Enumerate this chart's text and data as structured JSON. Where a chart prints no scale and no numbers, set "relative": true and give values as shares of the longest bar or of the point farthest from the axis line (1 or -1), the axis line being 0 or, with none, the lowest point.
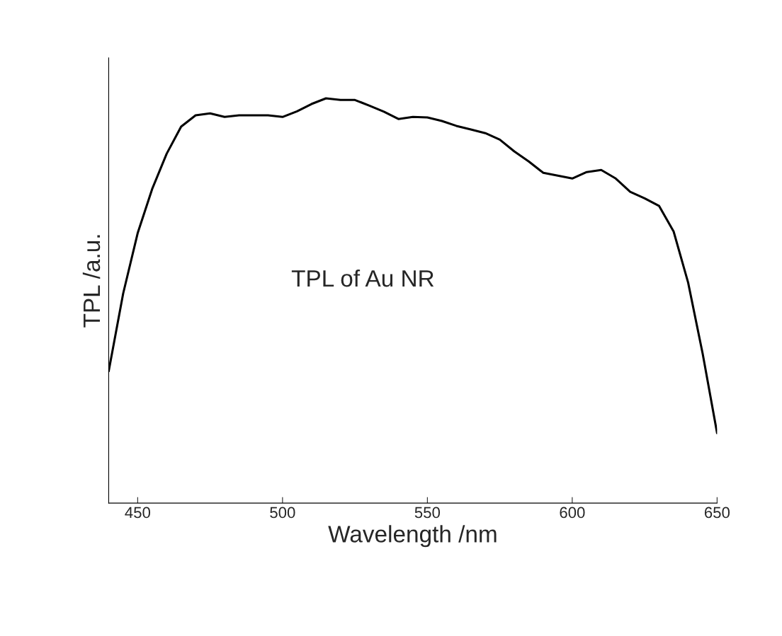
{
  "chart_data": {
    "type": "line",
    "xlabel": "Wavelength /nm",
    "ylabel": "TPL /a.u.",
    "relative": true,
    "annotations": [
      "TPL of Au NR"
    ],
    "xlim": [
      440,
      650
    ],
    "xticks": [
      450,
      500,
      550,
      600,
      650
    ],
    "grid": false,
    "legend": false,
    "series": [
      {
        "color": "#000000",
        "x": [
          440,
          445,
          450,
          455,
          460,
          465,
          470,
          475,
          480,
          485,
          490,
          495,
          500,
          505,
          510,
          515,
          520,
          525,
          530,
          535,
          540,
          545,
          550,
          555,
          560,
          565,
          570,
          575,
          580,
          585,
          590,
          595,
          600,
          605,
          610,
          615,
          620,
          625,
          630,
          635,
          640,
          645,
          650
        ],
        "values": [
          0.326,
          0.518,
          0.667,
          0.776,
          0.863,
          0.93,
          0.958,
          0.963,
          0.954,
          0.958,
          0.958,
          0.958,
          0.954,
          0.968,
          0.986,
          1.0,
          0.996,
          0.996,
          0.982,
          0.967,
          0.949,
          0.954,
          0.953,
          0.944,
          0.932,
          0.923,
          0.914,
          0.898,
          0.869,
          0.844,
          0.816,
          0.809,
          0.802,
          0.818,
          0.823,
          0.802,
          0.769,
          0.753,
          0.734,
          0.671,
          0.545,
          0.37,
          0.173
        ]
      }
    ]
  }
}
